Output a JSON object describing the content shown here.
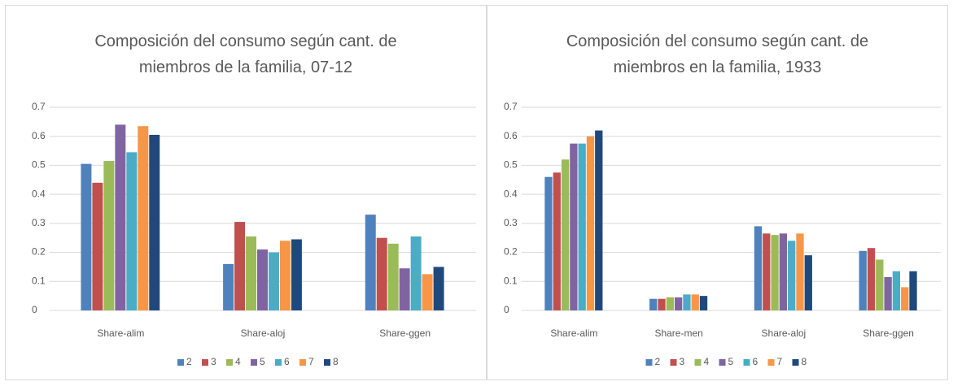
{
  "chart_data": [
    {
      "type": "bar",
      "title": "Composición del consumo según cant. de miembros de la familia, 07-12",
      "categories": [
        "Share-alim",
        "Share-aloj",
        "Share-ggen"
      ],
      "series": [
        {
          "name": "2",
          "color": "#4f81bd",
          "values": [
            0.505,
            0.16,
            0.33
          ]
        },
        {
          "name": "3",
          "color": "#c0504d",
          "values": [
            0.44,
            0.305,
            0.25
          ]
        },
        {
          "name": "4",
          "color": "#9bbb59",
          "values": [
            0.515,
            0.255,
            0.23
          ]
        },
        {
          "name": "5",
          "color": "#8064a2",
          "values": [
            0.64,
            0.21,
            0.145
          ]
        },
        {
          "name": "6",
          "color": "#4bacc6",
          "values": [
            0.545,
            0.2,
            0.255
          ]
        },
        {
          "name": "7",
          "color": "#f79646",
          "values": [
            0.635,
            0.24,
            0.125
          ]
        },
        {
          "name": "8",
          "color": "#1f497d",
          "values": [
            0.605,
            0.245,
            0.15
          ]
        }
      ],
      "ylim": [
        0,
        0.7
      ],
      "yticks": [
        0,
        0.1,
        0.2,
        0.3,
        0.4,
        0.5,
        0.6,
        0.7
      ],
      "grid": true,
      "legend": "bottom"
    },
    {
      "type": "bar",
      "title": "Composición del consumo según cant. de miembros en la familia, 1933",
      "categories": [
        "Share-alim",
        "Share-men",
        "Share-aloj",
        "Share-ggen"
      ],
      "series": [
        {
          "name": "2",
          "color": "#4f81bd",
          "values": [
            0.46,
            0.04,
            0.29,
            0.205
          ]
        },
        {
          "name": "3",
          "color": "#c0504d",
          "values": [
            0.475,
            0.04,
            0.265,
            0.215
          ]
        },
        {
          "name": "4",
          "color": "#9bbb59",
          "values": [
            0.52,
            0.045,
            0.26,
            0.175
          ]
        },
        {
          "name": "5",
          "color": "#8064a2",
          "values": [
            0.575,
            0.045,
            0.265,
            0.115
          ]
        },
        {
          "name": "6",
          "color": "#4bacc6",
          "values": [
            0.575,
            0.055,
            0.24,
            0.135
          ]
        },
        {
          "name": "7",
          "color": "#f79646",
          "values": [
            0.6,
            0.055,
            0.265,
            0.08
          ]
        },
        {
          "name": "8",
          "color": "#1f497d",
          "values": [
            0.62,
            0.05,
            0.19,
            0.135
          ]
        }
      ],
      "ylim": [
        0,
        0.7
      ],
      "yticks": [
        0,
        0.1,
        0.2,
        0.3,
        0.4,
        0.5,
        0.6,
        0.7
      ],
      "grid": true,
      "legend": "bottom"
    }
  ]
}
